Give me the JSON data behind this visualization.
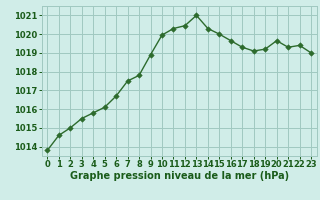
{
  "x": [
    0,
    1,
    2,
    3,
    4,
    5,
    6,
    7,
    8,
    9,
    10,
    11,
    12,
    13,
    14,
    15,
    16,
    17,
    18,
    19,
    20,
    21,
    22,
    23
  ],
  "y": [
    1013.8,
    1014.6,
    1015.0,
    1015.5,
    1015.8,
    1016.1,
    1016.7,
    1017.5,
    1017.8,
    1018.9,
    1019.95,
    1020.3,
    1020.45,
    1021.0,
    1020.3,
    1020.0,
    1019.65,
    1019.3,
    1019.1,
    1019.2,
    1019.65,
    1019.3,
    1019.4,
    1019.0
  ],
  "bg_color": "#d0ede8",
  "line_color": "#2d6b2d",
  "marker_color": "#2d6b2d",
  "grid_color": "#a0c8c0",
  "xlabel": "Graphe pression niveau de la mer (hPa)",
  "xlabel_color": "#1a5c1a",
  "tick_color": "#1a5c1a",
  "ylim_min": 1013.5,
  "ylim_max": 1021.5,
  "xlim_min": -0.5,
  "xlim_max": 23.5,
  "xtick_labels": [
    "0",
    "1",
    "2",
    "3",
    "4",
    "5",
    "6",
    "7",
    "8",
    "9",
    "10",
    "11",
    "12",
    "13",
    "14",
    "15",
    "16",
    "17",
    "18",
    "19",
    "20",
    "21",
    "22",
    "23"
  ],
  "ytick_labels": [
    "1014",
    "1015",
    "1016",
    "1017",
    "1018",
    "1019",
    "1020",
    "1021"
  ],
  "label_fontsize": 7,
  "tick_fontsize": 6,
  "linewidth": 1.0,
  "markersize": 2.8
}
